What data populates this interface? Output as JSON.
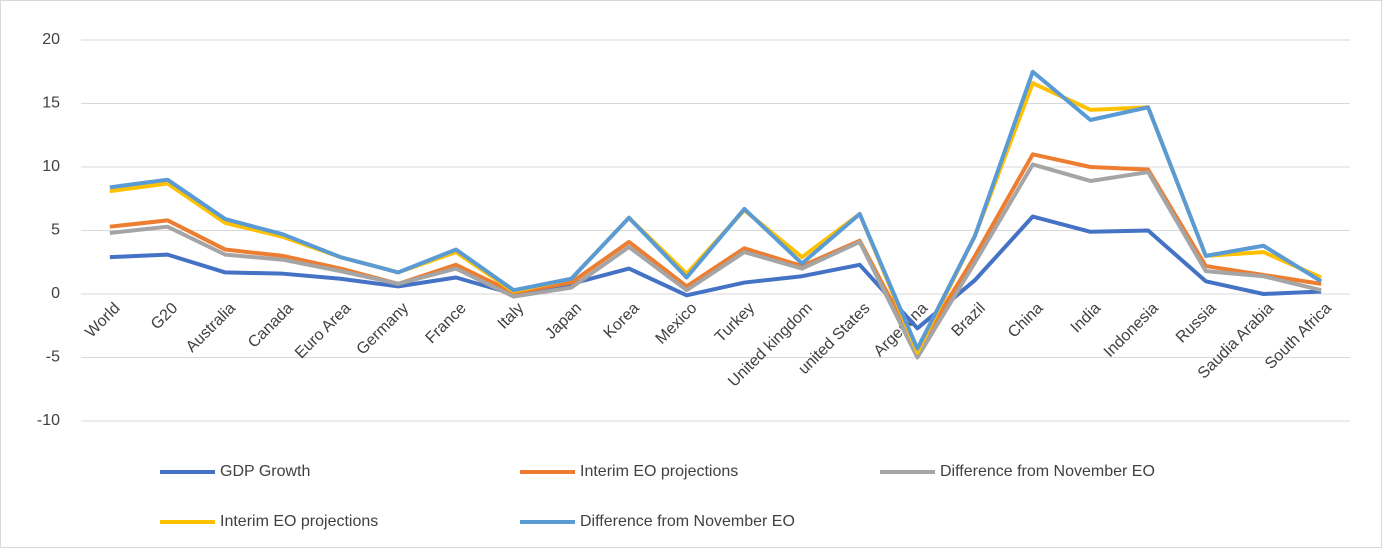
{
  "chart_data": {
    "type": "line",
    "categories": [
      "World",
      "G20",
      "Australia",
      "Canada",
      "Euro Area",
      "Germany",
      "France",
      "Italy",
      "Japan",
      "Korea",
      "Mexico",
      "Turkey",
      "United kingdom",
      "united States",
      "Argentina",
      "Brazil",
      "China",
      "India",
      "Indonesia",
      "Russia",
      "Saudia Arabia",
      "South Africa"
    ],
    "series": [
      {
        "name": "GDP Growth",
        "color": "#4472c4",
        "values": [
          2.9,
          3.1,
          1.7,
          1.6,
          1.2,
          0.6,
          1.3,
          0.0,
          0.8,
          2.0,
          -0.1,
          0.9,
          1.4,
          2.3,
          -2.7,
          1.1,
          6.1,
          4.9,
          5.0,
          1.0,
          0.0,
          0.2
        ]
      },
      {
        "name": "Interim EO projections",
        "color": "#ed7d31",
        "values": [
          5.3,
          5.8,
          3.5,
          3.0,
          2.0,
          0.8,
          2.3,
          0.1,
          0.9,
          4.1,
          0.6,
          3.6,
          2.2,
          4.2,
          -4.4,
          3.0,
          11.0,
          10.0,
          9.8,
          2.2,
          1.5,
          0.8
        ]
      },
      {
        "name": "Difference from November EO",
        "color": "#a5a5a5",
        "values": [
          4.8,
          5.3,
          3.1,
          2.7,
          1.8,
          0.8,
          2.0,
          -0.2,
          0.5,
          3.7,
          0.3,
          3.3,
          2.0,
          4.1,
          -5.0,
          2.5,
          10.2,
          8.9,
          9.6,
          1.8,
          1.4,
          0.3
        ]
      },
      {
        "name": "Interim EO projections",
        "color": "#ffc000",
        "values": [
          8.1,
          8.7,
          5.6,
          4.5,
          2.9,
          1.7,
          3.3,
          0.2,
          1.2,
          6.0,
          1.6,
          6.6,
          2.9,
          6.3,
          -4.6,
          4.6,
          16.6,
          14.5,
          14.7,
          3.0,
          3.3,
          1.3
        ]
      },
      {
        "name": "Difference from November EO",
        "color": "#5b9bd5",
        "values": [
          8.4,
          9.0,
          5.9,
          4.7,
          2.9,
          1.7,
          3.5,
          0.3,
          1.2,
          6.0,
          1.3,
          6.7,
          2.4,
          6.3,
          -4.3,
          4.6,
          17.5,
          13.7,
          14.7,
          3.0,
          3.8,
          1.0
        ]
      }
    ],
    "ylim": [
      -10,
      20
    ],
    "yticks": [
      -10,
      -5,
      0,
      5,
      10,
      15,
      20
    ],
    "grid": true,
    "legend": "bottom"
  }
}
